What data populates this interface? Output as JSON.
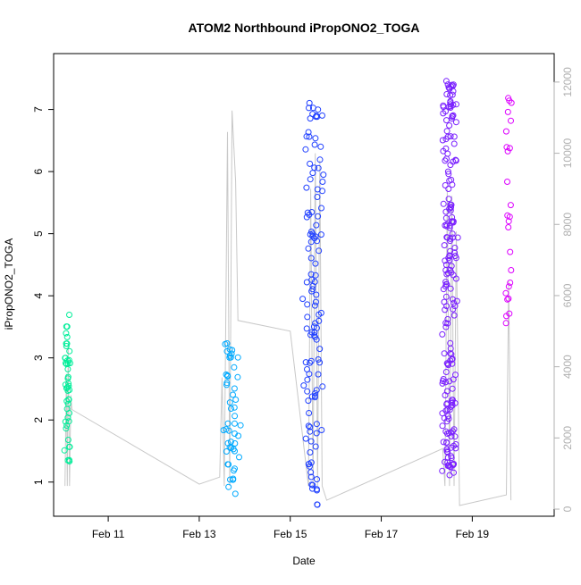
{
  "chart_data": {
    "type": "scatter",
    "title": "ATOM2 Northbound iPropONO2_TOGA",
    "xlabel": "Date",
    "ylabel": "iPropONO2_TOGA",
    "x_ticks": [
      "Feb 11",
      "Feb 13",
      "Feb 15",
      "Feb 17",
      "Feb 19"
    ],
    "x_tick_values": [
      11,
      13,
      15,
      17,
      19
    ],
    "xlim": [
      9.8,
      20.8
    ],
    "ylim": [
      0.45,
      7.9
    ],
    "y_ticks": [
      1,
      2,
      3,
      4,
      5,
      6,
      7
    ],
    "y2_ticks": [
      0,
      2000,
      4000,
      6000,
      8000,
      10000,
      12000
    ],
    "y2_lim": [
      -200,
      12800
    ],
    "grid": false,
    "point_colors": [
      "#00ee99",
      "#00aaff",
      "#2040ff",
      "#7a20ff",
      "#dd00ff"
    ],
    "line_color": "#c8c8c8",
    "line_series": [
      [
        10.05,
        650
      ],
      [
        10.08,
        3800
      ],
      [
        10.1,
        650
      ],
      [
        10.12,
        4600
      ],
      [
        10.15,
        650
      ],
      [
        10.18,
        3200
      ],
      [
        10.2,
        2800
      ],
      [
        13.0,
        700
      ],
      [
        13.45,
        900
      ],
      [
        13.5,
        3700
      ],
      [
        13.55,
        650
      ],
      [
        13.62,
        10600
      ],
      [
        13.67,
        650
      ],
      [
        13.72,
        11200
      ],
      [
        13.8,
        9200
      ],
      [
        13.85,
        5300
      ],
      [
        15.0,
        5000
      ],
      [
        15.4,
        650
      ],
      [
        15.45,
        9000
      ],
      [
        15.5,
        650
      ],
      [
        15.55,
        10000
      ],
      [
        15.6,
        650
      ],
      [
        15.65,
        9800
      ],
      [
        15.7,
        650
      ],
      [
        15.8,
        250
      ],
      [
        18.35,
        1700
      ],
      [
        18.4,
        650
      ],
      [
        18.45,
        9000
      ],
      [
        18.5,
        650
      ],
      [
        18.55,
        8800
      ],
      [
        18.6,
        650
      ],
      [
        18.65,
        7800
      ],
      [
        18.72,
        100
      ],
      [
        19.75,
        400
      ],
      [
        19.8,
        6400
      ],
      [
        19.85,
        250
      ]
    ],
    "clusters": [
      {
        "center": 10.1,
        "spread": 0.08,
        "ymin": 1.3,
        "ymax": 3.7,
        "count": 45,
        "color": "#00ee99"
      },
      {
        "center": 13.7,
        "spread": 0.25,
        "ymin": 0.7,
        "ymax": 3.3,
        "count": 50,
        "color": "#00aaff"
      },
      {
        "center": 15.5,
        "spread": 0.25,
        "ymin": 0.6,
        "ymax": 7.15,
        "count": 120,
        "color": "#2040ff"
      },
      {
        "center": 18.5,
        "spread": 0.2,
        "ymin": 1.1,
        "ymax": 7.6,
        "count": 200,
        "color": "#7a20ff"
      },
      {
        "center": 19.8,
        "spread": 0.08,
        "ymin": 3.5,
        "ymax": 7.2,
        "count": 25,
        "color": "#dd00ff"
      }
    ]
  }
}
